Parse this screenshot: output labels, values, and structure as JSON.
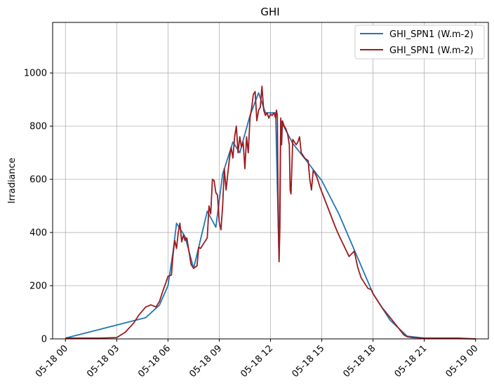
{
  "chart_data": {
    "type": "line",
    "title": "GHI",
    "xlabel": "",
    "ylabel": "Irradiance",
    "xlim": [
      "2024-05-17 23:15",
      "2024-05-19 00:45"
    ],
    "ylim": [
      0,
      1190
    ],
    "x_ticks": [
      "05-18 00",
      "05-18 03",
      "05-18 06",
      "05-18 09",
      "05-18 12",
      "05-18 15",
      "05-18 18",
      "05-18 21",
      "05-19 00"
    ],
    "y_ticks": [
      0,
      200,
      400,
      600,
      800,
      1000
    ],
    "grid": true,
    "legend_position": "top-right",
    "x_unit": "hours after 05-18 00:00",
    "series": [
      {
        "name": "GHI_SPN1 (W.m-2)",
        "color": "#1f77b4",
        "x": [
          0,
          4.7,
          5.5,
          6.0,
          6.3,
          6.5,
          7.0,
          7.5,
          7.8,
          8.3,
          8.8,
          9.2,
          9.8,
          10.2,
          10.8,
          11.3,
          11.7,
          12.3,
          12.5,
          12.6,
          13.3,
          14.1,
          15.0,
          16.0,
          17.0,
          18.0,
          19.0,
          20.0,
          21.0,
          24.0
        ],
        "y": [
          3,
          80,
          127,
          200,
          330,
          435,
          385,
          265,
          345,
          480,
          420,
          620,
          740,
          700,
          840,
          925,
          850,
          850,
          300,
          820,
          735,
          670,
          595,
          470,
          320,
          170,
          70,
          10,
          3,
          0
        ]
      },
      {
        "name": "GHI_SPN1 (W.m-2)",
        "color": "#9b1b20",
        "x": [
          0,
          2.0,
          3.0,
          3.5,
          4.0,
          4.3,
          4.7,
          5.0,
          5.3,
          5.5,
          5.7,
          5.9,
          6.0,
          6.2,
          6.3,
          6.4,
          6.5,
          6.6,
          6.7,
          6.8,
          6.9,
          7.0,
          7.1,
          7.2,
          7.35,
          7.5,
          7.7,
          7.8,
          7.9,
          8.1,
          8.3,
          8.4,
          8.5,
          8.6,
          8.7,
          8.8,
          8.9,
          9.0,
          9.1,
          9.2,
          9.3,
          9.4,
          9.5,
          9.6,
          9.7,
          9.8,
          9.9,
          10.0,
          10.1,
          10.2,
          10.3,
          10.4,
          10.5,
          10.6,
          10.7,
          10.8,
          10.9,
          11.0,
          11.1,
          11.2,
          11.3,
          11.4,
          11.5,
          11.6,
          11.7,
          11.8,
          11.9,
          12.0,
          12.1,
          12.2,
          12.3,
          12.35,
          12.4,
          12.45,
          12.5,
          12.55,
          12.6,
          12.65,
          12.7,
          12.8,
          12.9,
          13.0,
          13.1,
          13.15,
          13.2,
          13.3,
          13.4,
          13.5,
          13.6,
          13.7,
          13.8,
          13.9,
          14.0,
          14.2,
          14.3,
          14.4,
          14.5,
          14.7,
          14.9,
          15.2,
          15.5,
          15.8,
          16.0,
          16.3,
          16.6,
          16.9,
          17.0,
          17.1,
          17.2,
          17.3,
          17.5,
          17.7,
          17.9,
          18.0,
          18.5,
          19.0,
          19.5,
          19.8,
          20.0,
          20.3,
          21.0,
          22.0,
          23.0,
          24.0
        ],
        "y": [
          3,
          3,
          5,
          25,
          60,
          90,
          120,
          128,
          120,
          140,
          180,
          215,
          235,
          240,
          320,
          370,
          340,
          400,
          435,
          365,
          390,
          370,
          380,
          340,
          280,
          265,
          275,
          345,
          340,
          360,
          380,
          500,
          470,
          600,
          595,
          550,
          540,
          440,
          410,
          500,
          640,
          560,
          620,
          680,
          720,
          680,
          760,
          800,
          700,
          760,
          720,
          740,
          640,
          760,
          700,
          830,
          870,
          920,
          930,
          820,
          860,
          870,
          950,
          860,
          840,
          850,
          830,
          845,
          840,
          850,
          830,
          860,
          840,
          440,
          290,
          420,
          830,
          730,
          820,
          800,
          790,
          770,
          730,
          560,
          545,
          750,
          740,
          730,
          740,
          760,
          700,
          690,
          680,
          670,
          600,
          560,
          635,
          610,
          570,
          520,
          470,
          420,
          390,
          350,
          310,
          330,
          300,
          270,
          250,
          230,
          210,
          190,
          185,
          170,
          120,
          80,
          40,
          15,
          8,
          5,
          3,
          3,
          3,
          0
        ]
      }
    ]
  }
}
